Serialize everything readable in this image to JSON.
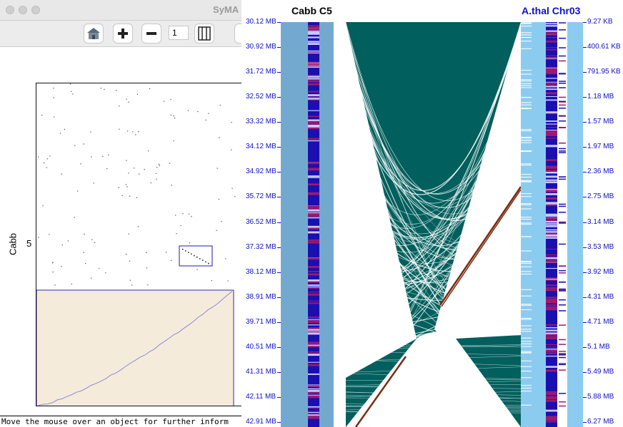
{
  "window": {
    "title": "SyMA"
  },
  "toolbar": {
    "home_icon": "home-icon",
    "zoom_in_icon": "plus-icon",
    "zoom_out_icon": "minus-icon",
    "zoom_value": "1",
    "scale_icon": "scale-bar-icon"
  },
  "dotplot": {
    "y_axis_label": "Cabb",
    "y_tick_label": "5"
  },
  "status": {
    "message": "Move the mouse over an object for further inform"
  },
  "synteny": {
    "left_chr": {
      "title": "Cabb C5",
      "color": "#000000"
    },
    "right_chr": {
      "title": "A.thal Chr03",
      "color": "#1010c8"
    },
    "left_ticks": [
      "30.12 MB",
      "30.92 MB",
      "31.72 MB",
      "32.52 MB",
      "33.32 MB",
      "34.12 MB",
      "34.92 MB",
      "35.72 MB",
      "36.52 MB",
      "37.32 MB",
      "38.12 MB",
      "38.91 MB",
      "39.71 MB",
      "40.51 MB",
      "41.31 MB",
      "42.11 MB",
      "42.91 MB"
    ],
    "right_ticks": [
      "9.27 KB",
      "400.61 KB",
      "791.95 KB",
      "1.18 MB",
      "1.57 MB",
      "1.97 MB",
      "2.36 MB",
      "2.75 MB",
      "3.14 MB",
      "3.53 MB",
      "3.92 MB",
      "4.31 MB",
      "4.71 MB",
      "5.1 MB",
      "5.49 MB",
      "5.88 MB",
      "6.27 MB"
    ],
    "colors": {
      "ribbon": "#015f5d",
      "track_outer": "#74a9cf",
      "track_inner_right": "#8ccbf0",
      "gene_blue": "#1a10b0",
      "gene_magenta": "#9c1a6e",
      "highlight": "#7a2a10",
      "tick": "#1010c8"
    }
  }
}
